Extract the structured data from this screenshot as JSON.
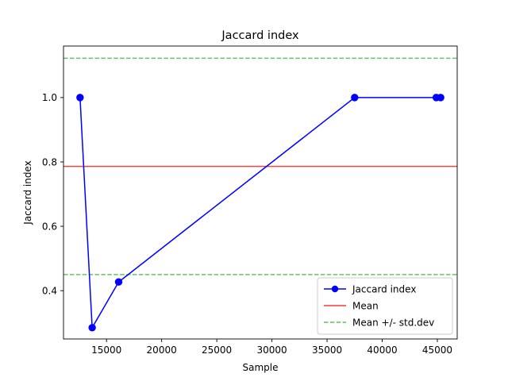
{
  "chart_data": {
    "type": "line",
    "title": "Jaccard index",
    "xlabel": "Sample",
    "ylabel": "Jaccard index",
    "xlim": [
      11100,
      46800
    ],
    "ylim": [
      0.25,
      1.16
    ],
    "xticks": [
      15000,
      20000,
      25000,
      30000,
      35000,
      40000,
      45000
    ],
    "xtick_labels": [
      "15000",
      "20000",
      "25000",
      "30000",
      "35000",
      "40000",
      "45000"
    ],
    "yticks": [
      0.4,
      0.6,
      0.8,
      1.0
    ],
    "ytick_labels": [
      "0.4",
      "0.6",
      "0.8",
      "1.0"
    ],
    "grid": false,
    "legend_position": "lower-right",
    "series": [
      {
        "name": "Jaccard index",
        "color": "#0000ff",
        "marker": "circle",
        "x": [
          12600,
          13700,
          16100,
          37500,
          44900,
          45300
        ],
        "y": [
          1.0,
          0.285,
          0.427,
          1.0,
          1.0,
          1.0
        ]
      }
    ],
    "reference_lines": [
      {
        "name": "Mean",
        "value": 0.786,
        "color": "#f03c3c",
        "style": "solid"
      },
      {
        "name": "Mean +/- std.dev",
        "value": 1.122,
        "color": "#64bc64",
        "style": "dashed"
      },
      {
        "name": "Mean +/- std.dev",
        "value": 0.45,
        "color": "#64bc64",
        "style": "dashed",
        "legend": false
      }
    ],
    "legend": [
      {
        "label": "Jaccard index",
        "color": "#0000ff",
        "style": "line-marker"
      },
      {
        "label": "Mean",
        "color": "#f03c3c",
        "style": "solid"
      },
      {
        "label": "Mean +/- std.dev",
        "color": "#64bc64",
        "style": "dashed"
      }
    ]
  }
}
